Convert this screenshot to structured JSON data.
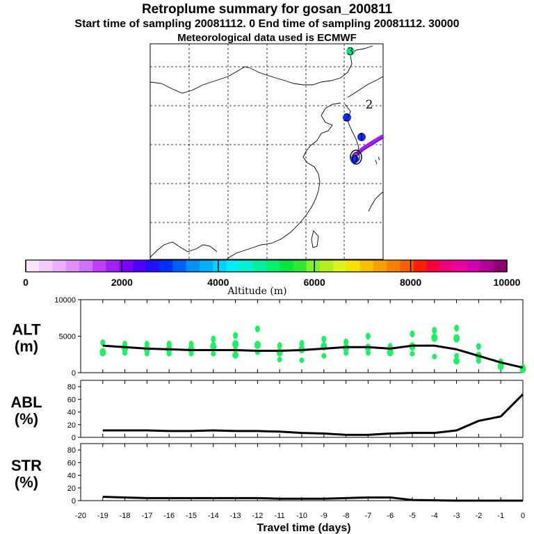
{
  "header": {
    "title": "Retroplume summary for gosan_200811",
    "subline": "Start time of sampling 20081112.     0     End time of sampling 20081112. 30000",
    "met_line": "Meteorological data used is ECMWF"
  },
  "map": {
    "markers": [
      {
        "label": "0",
        "color": "#1030ff"
      },
      {
        "label": "1",
        "color": "#1030ff"
      },
      {
        "label": "2",
        "color": "#1030ff"
      },
      {
        "label": "3",
        "color": "#00e890"
      }
    ],
    "number_labels": [
      "2",
      "3"
    ],
    "track_color": "#a020f0"
  },
  "colorbar": {
    "ticks": [
      "0",
      "2000",
      "4000",
      "6000",
      "8000",
      "10000"
    ],
    "tick_values": [
      0,
      2000,
      4000,
      6000,
      8000,
      10000
    ],
    "label": "Altitude (m)",
    "colors": [
      "#f8e6ff",
      "#f0ccff",
      "#e8b0ff",
      "#e090ff",
      "#d070ff",
      "#c040ff",
      "#a020ff",
      "#8000ff",
      "#5000ff",
      "#2010ff",
      "#0030ff",
      "#0060ff",
      "#0090ff",
      "#00b0ff",
      "#00d0ff",
      "#00f0f8",
      "#00f0d0",
      "#00f0a0",
      "#00f070",
      "#00e840",
      "#30e830",
      "#80f030",
      "#b0f020",
      "#e0f020",
      "#f8e000",
      "#f8c000",
      "#f8a000",
      "#f88000",
      "#f86000",
      "#f82000",
      "#f80040",
      "#f00080",
      "#e800a0",
      "#d000b0",
      "#b00090",
      "#900070"
    ]
  },
  "chart_data": [
    {
      "type": "line",
      "panel": "ALT",
      "ylabel": "ALT\n(m)",
      "ylabel_lines": [
        "ALT",
        "(m)"
      ],
      "ylim": [
        0,
        10000
      ],
      "yticks": [
        0,
        5000,
        10000
      ],
      "xlim": [
        -20,
        0
      ],
      "x": [
        -19,
        -18,
        -17,
        -16,
        -15,
        -14,
        -13,
        -12,
        -11,
        -10,
        -9,
        -8,
        -7,
        -6,
        -5,
        -4,
        -3,
        -2,
        -1,
        0
      ],
      "values": [
        3700,
        3500,
        3300,
        3200,
        3100,
        3100,
        3100,
        3000,
        3000,
        3100,
        3300,
        3500,
        3500,
        3300,
        3700,
        3700,
        3200,
        2300,
        1400,
        700
      ],
      "clusters": [
        {
          "x": -19,
          "y": [
            4100,
            2800
          ]
        },
        {
          "x": -18,
          "y": [
            3900,
            3300,
            2700
          ]
        },
        {
          "x": -17,
          "y": [
            3900,
            3200,
            2600
          ]
        },
        {
          "x": -16,
          "y": [
            3900,
            3200,
            2600
          ]
        },
        {
          "x": -15,
          "y": [
            3900,
            3200,
            2600
          ]
        },
        {
          "x": -14,
          "y": [
            4600,
            3600,
            2600
          ]
        },
        {
          "x": -13,
          "y": [
            5100,
            3900,
            3100,
            2400
          ]
        },
        {
          "x": -12,
          "y": [
            6000,
            3800,
            2800
          ]
        },
        {
          "x": -11,
          "y": [
            3700,
            2800,
            1800
          ]
        },
        {
          "x": -10,
          "y": [
            4000,
            3200,
            1700
          ]
        },
        {
          "x": -9,
          "y": [
            4600,
            3600,
            2300
          ]
        },
        {
          "x": -8,
          "y": [
            4200,
            3400,
            2700
          ]
        },
        {
          "x": -7,
          "y": [
            5000,
            3400,
            2700
          ]
        },
        {
          "x": -6,
          "y": [
            3600,
            2800
          ]
        },
        {
          "x": -5,
          "y": [
            5300,
            3600,
            2600
          ]
        },
        {
          "x": -4,
          "y": [
            5800,
            4800,
            2200
          ]
        },
        {
          "x": -3,
          "y": [
            6100,
            4700,
            2300,
            1600
          ]
        },
        {
          "x": -2,
          "y": [
            3600,
            2300,
            1600
          ]
        },
        {
          "x": -1,
          "y": [
            1500,
            900
          ]
        },
        {
          "x": 0,
          "y": [
            700,
            500
          ]
        }
      ]
    },
    {
      "type": "line",
      "panel": "ABL",
      "ylabel": "ABL\n(%)",
      "ylabel_lines": [
        "ABL",
        "(%)"
      ],
      "ylim": [
        0,
        90
      ],
      "yticks": [
        0,
        20,
        40,
        60,
        80
      ],
      "xlim": [
        -20,
        0
      ],
      "x": [
        -19,
        -18,
        -17,
        -16,
        -15,
        -14,
        -13,
        -12,
        -11,
        -10,
        -9,
        -8,
        -7,
        -6,
        -5,
        -4,
        -3,
        -2,
        -1,
        0
      ],
      "values": [
        11,
        11,
        11,
        10,
        10,
        11,
        10,
        10,
        9,
        7,
        6,
        4,
        4,
        6,
        7,
        7,
        11,
        26,
        33,
        68
      ]
    },
    {
      "type": "line",
      "panel": "STR",
      "ylabel": "STR\n(%)",
      "ylabel_lines": [
        "STR",
        "(%)"
      ],
      "ylim": [
        0,
        90
      ],
      "yticks": [
        0,
        20,
        40,
        60,
        80
      ],
      "xlim": [
        -20,
        0
      ],
      "x": [
        -19,
        -18,
        -17,
        -16,
        -15,
        -14,
        -13,
        -12,
        -11,
        -10,
        -9,
        -8,
        -7,
        -6,
        -5,
        -4,
        -3,
        -2,
        -1,
        0
      ],
      "values": [
        6,
        5,
        4,
        4,
        4,
        4,
        4,
        4,
        3,
        3,
        3,
        4,
        5,
        5,
        1,
        0.5,
        0,
        0,
        0,
        0
      ]
    }
  ],
  "xaxis": {
    "ticks": [
      "-20",
      "-19",
      "-18",
      "-17",
      "-16",
      "-15",
      "-14",
      "-13",
      "-12",
      "-11",
      "-10",
      "-9",
      "-8",
      "-7",
      "-6",
      "-5",
      "-4",
      "-3",
      "-2",
      "-1",
      "0"
    ],
    "label": "Travel time (days)"
  }
}
